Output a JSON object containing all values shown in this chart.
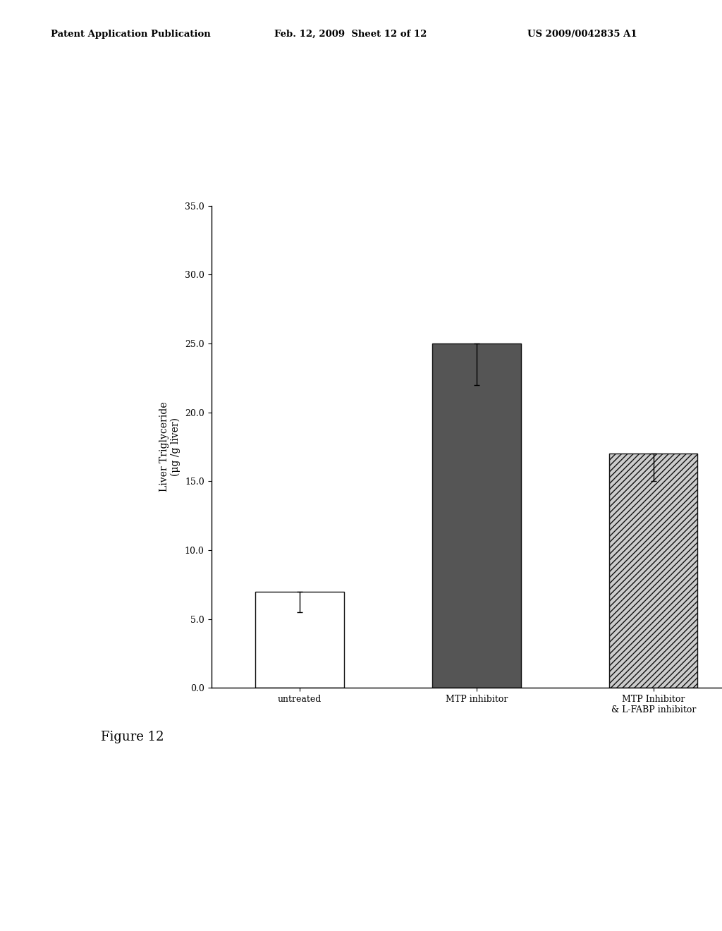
{
  "categories": [
    "untreated",
    "MTP inhibitor",
    "MTP Inhibitor\n& L-FABP inhibitor"
  ],
  "values": [
    7.0,
    25.0,
    17.0
  ],
  "errors": [
    1.5,
    3.0,
    2.0
  ],
  "ylim": [
    0.0,
    35.0
  ],
  "yticks": [
    0.0,
    5.0,
    10.0,
    15.0,
    20.0,
    25.0,
    30.0,
    35.0
  ],
  "ylabel_line1": "Liver Triglyceride",
  "ylabel_line2": "(μg /g liver)",
  "figure_label": "Figure 12",
  "header_left": "Patent Application Publication",
  "header_center": "Feb. 12, 2009  Sheet 12 of 12",
  "header_right": "US 2009/0042835 A1",
  "background_color": "#ffffff",
  "dark_gray_color": "#555555",
  "bar_edge_color": "#111111",
  "hatch_pattern": "////",
  "hatch_bg_color": "#cccccc",
  "bar_width": 0.5
}
